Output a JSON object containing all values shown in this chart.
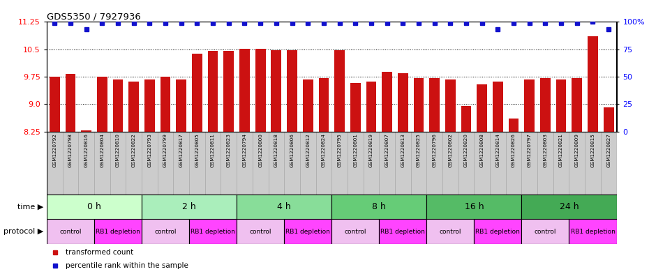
{
  "title": "GDS5350 / 7927936",
  "samples": [
    "GSM1220792",
    "GSM1220798",
    "GSM1220816",
    "GSM1220804",
    "GSM1220810",
    "GSM1220822",
    "GSM1220793",
    "GSM1220799",
    "GSM1220817",
    "GSM1220805",
    "GSM1220811",
    "GSM1220823",
    "GSM1220794",
    "GSM1220800",
    "GSM1220818",
    "GSM1220806",
    "GSM1220812",
    "GSM1220824",
    "GSM1220795",
    "GSM1220801",
    "GSM1220819",
    "GSM1220807",
    "GSM1220813",
    "GSM1220825",
    "GSM1220796",
    "GSM1220802",
    "GSM1220820",
    "GSM1220808",
    "GSM1220814",
    "GSM1220826",
    "GSM1220797",
    "GSM1220803",
    "GSM1220821",
    "GSM1220809",
    "GSM1220815",
    "GSM1220827"
  ],
  "bar_values": [
    9.75,
    9.82,
    8.28,
    9.75,
    9.68,
    9.62,
    9.68,
    9.75,
    9.67,
    10.38,
    10.45,
    10.45,
    10.52,
    10.52,
    10.48,
    10.48,
    9.68,
    9.72,
    10.48,
    9.58,
    9.62,
    9.88,
    9.85,
    9.72,
    9.72,
    9.68,
    8.95,
    9.55,
    9.62,
    8.6,
    9.68,
    9.72,
    9.68,
    9.72,
    10.85,
    8.92
  ],
  "percentile_values": [
    99,
    99,
    93,
    99,
    99,
    99,
    99,
    99,
    99,
    99,
    99,
    99,
    99,
    99,
    99,
    99,
    99,
    99,
    99,
    99,
    99,
    99,
    99,
    99,
    99,
    99,
    99,
    99,
    93,
    99,
    99,
    99,
    99,
    99,
    100,
    93
  ],
  "time_groups": [
    {
      "label": "0 h",
      "start": 0,
      "end": 6,
      "color": "#ccffcc"
    },
    {
      "label": "2 h",
      "start": 6,
      "end": 12,
      "color": "#aaeebb"
    },
    {
      "label": "4 h",
      "start": 12,
      "end": 18,
      "color": "#88dd99"
    },
    {
      "label": "8 h",
      "start": 18,
      "end": 24,
      "color": "#66cc77"
    },
    {
      "label": "16 h",
      "start": 24,
      "end": 30,
      "color": "#55bb66"
    },
    {
      "label": "24 h",
      "start": 30,
      "end": 36,
      "color": "#44aa55"
    }
  ],
  "protocol_groups": [
    {
      "label": "control",
      "start": 0,
      "end": 3,
      "color": "#f0c0f0"
    },
    {
      "label": "RB1 depletion",
      "start": 3,
      "end": 6,
      "color": "#ff44ff"
    },
    {
      "label": "control",
      "start": 6,
      "end": 9,
      "color": "#f0c0f0"
    },
    {
      "label": "RB1 depletion",
      "start": 9,
      "end": 12,
      "color": "#ff44ff"
    },
    {
      "label": "control",
      "start": 12,
      "end": 15,
      "color": "#f0c0f0"
    },
    {
      "label": "RB1 depletion",
      "start": 15,
      "end": 18,
      "color": "#ff44ff"
    },
    {
      "label": "control",
      "start": 18,
      "end": 21,
      "color": "#f0c0f0"
    },
    {
      "label": "RB1 depletion",
      "start": 21,
      "end": 24,
      "color": "#ff44ff"
    },
    {
      "label": "control",
      "start": 24,
      "end": 27,
      "color": "#f0c0f0"
    },
    {
      "label": "RB1 depletion",
      "start": 27,
      "end": 30,
      "color": "#ff44ff"
    },
    {
      "label": "control",
      "start": 30,
      "end": 33,
      "color": "#f0c0f0"
    },
    {
      "label": "RB1 depletion",
      "start": 33,
      "end": 36,
      "color": "#ff44ff"
    }
  ],
  "ylim_left": [
    8.25,
    11.25
  ],
  "ylim_right": [
    0,
    100
  ],
  "yticks_left": [
    8.25,
    9.0,
    9.75,
    10.5,
    11.25
  ],
  "yticks_right": [
    0,
    25,
    50,
    75,
    100
  ],
  "bar_color": "#cc1111",
  "percentile_color": "#1111cc",
  "bg_color": "#ffffff",
  "label_bg_color": "#cccccc",
  "label_border_color": "#aaaaaa"
}
